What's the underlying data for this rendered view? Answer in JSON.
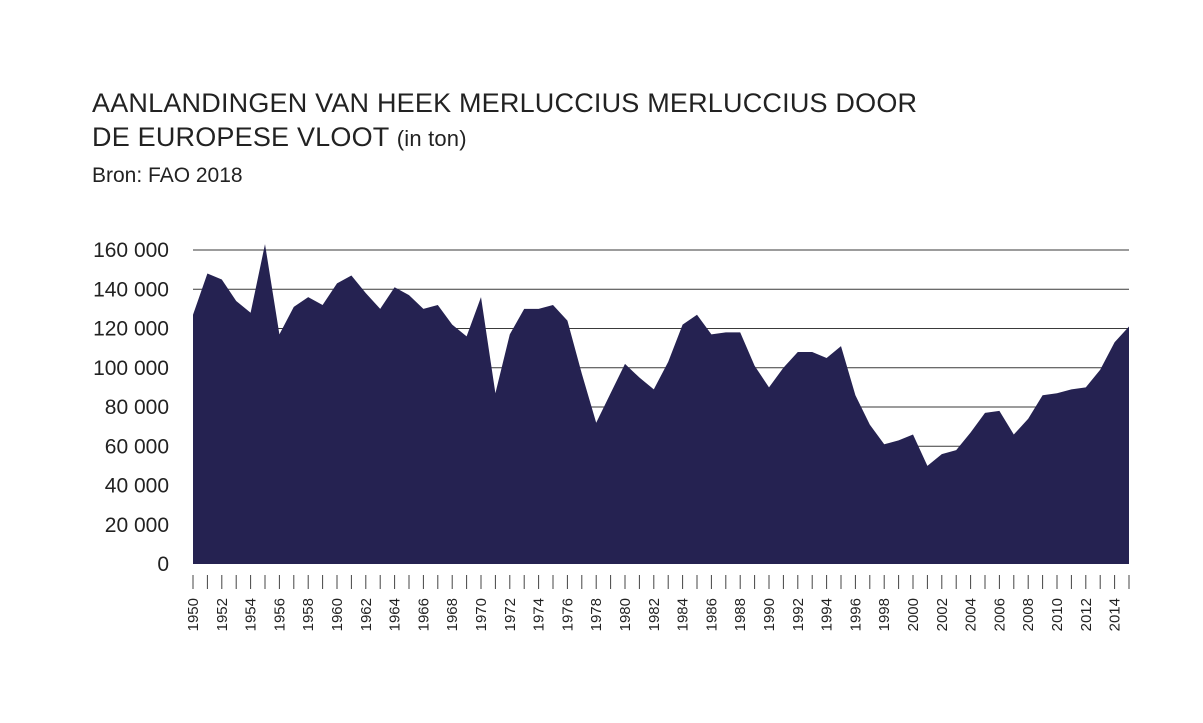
{
  "chart_data": {
    "type": "area",
    "title_line1": "AANLANDINGEN VAN HEEK MERLUCCIUS MERLUCCIUS DOOR",
    "title_line2": "DE EUROPESE VLOOT",
    "title_unit": "(in ton)",
    "subtitle": "Bron: FAO 2018",
    "xlabel": "",
    "ylabel": "",
    "xlim": [
      1950,
      2015
    ],
    "ylim": [
      0,
      160000
    ],
    "y_ticks": [
      0,
      20000,
      40000,
      60000,
      80000,
      100000,
      120000,
      140000,
      160000
    ],
    "y_tick_labels": [
      "0",
      "20 000",
      "40 000",
      "60 000",
      "80 000",
      "100 000",
      "120 000",
      "140 000",
      "160 000"
    ],
    "x_tick_labels": [
      "1950",
      "1952",
      "1954",
      "1956",
      "1958",
      "1960",
      "1962",
      "1964",
      "1966",
      "1968",
      "1970",
      "1972",
      "1974",
      "1976",
      "1978",
      "1980",
      "1982",
      "1984",
      "1986",
      "1988",
      "1990",
      "1992",
      "1994",
      "1996",
      "1998",
      "2000",
      "2002",
      "2004",
      "2006",
      "2008",
      "2010",
      "2012",
      "2014"
    ],
    "fill_color": "#252251",
    "grid": true,
    "x": [
      1950,
      1951,
      1952,
      1953,
      1954,
      1955,
      1956,
      1957,
      1958,
      1959,
      1960,
      1961,
      1962,
      1963,
      1964,
      1965,
      1966,
      1967,
      1968,
      1969,
      1970,
      1971,
      1972,
      1973,
      1974,
      1975,
      1976,
      1977,
      1978,
      1979,
      1980,
      1981,
      1982,
      1983,
      1984,
      1985,
      1986,
      1987,
      1988,
      1989,
      1990,
      1991,
      1992,
      1993,
      1994,
      1995,
      1996,
      1997,
      1998,
      1999,
      2000,
      2001,
      2002,
      2003,
      2004,
      2005,
      2006,
      2007,
      2008,
      2009,
      2010,
      2011,
      2012,
      2013,
      2014,
      2015
    ],
    "values": [
      127000,
      148000,
      145000,
      134000,
      128000,
      163000,
      117000,
      131000,
      136000,
      132000,
      143000,
      147000,
      138000,
      130000,
      141000,
      137000,
      130000,
      132000,
      122000,
      116000,
      136000,
      87000,
      117000,
      130000,
      130000,
      132000,
      124000,
      97000,
      72000,
      87000,
      102000,
      95000,
      89000,
      103000,
      122000,
      127000,
      117000,
      118000,
      118000,
      101000,
      90000,
      100000,
      108000,
      108000,
      105000,
      111000,
      86000,
      71000,
      61000,
      63000,
      66000,
      50000,
      56000,
      58000,
      67000,
      77000,
      78000,
      66000,
      74000,
      86000,
      87000,
      89000,
      90000,
      99000,
      113000,
      121000
    ]
  }
}
